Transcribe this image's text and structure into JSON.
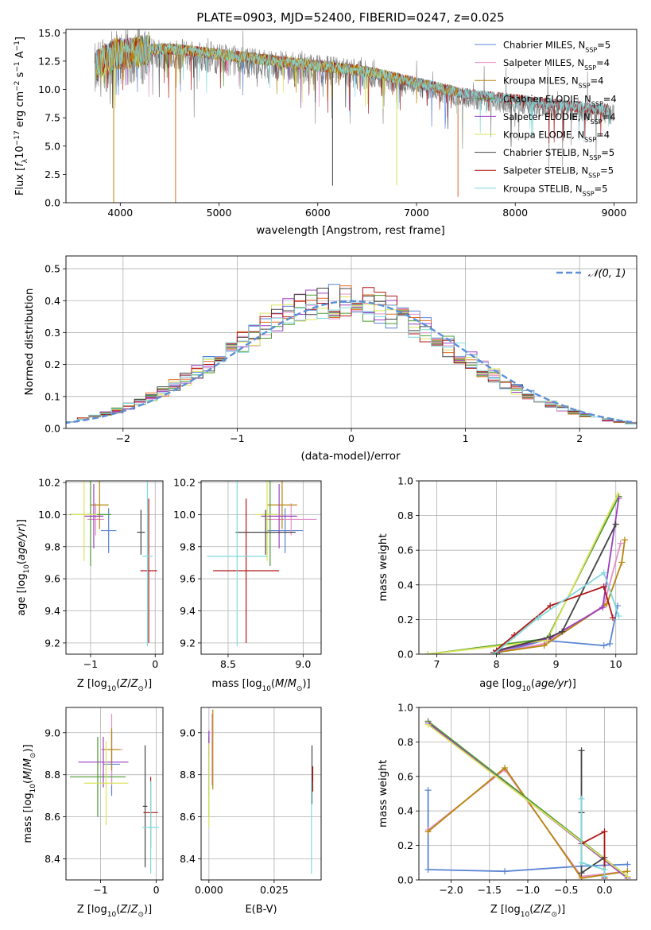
{
  "colors": {
    "chabrier_miles": "#5b84d4",
    "salpeter_miles": "#e48fc9",
    "kroupa_miles": "#b8860b",
    "chabrier_elodie": "#4a9a2e",
    "salpeter_elodie": "#9a3fc4",
    "kroupa_elodie": "#d9e35a",
    "chabrier_stelib": "#444444",
    "salpeter_stelib": "#b01818",
    "kroupa_stelib": "#7fd9dc",
    "hist_orange": "#e06a1f",
    "gauss": "#5b8fd6",
    "spec_gray": "#808080"
  },
  "chart_data": [
    {
      "id": "spectrum",
      "type": "line",
      "title": "PLATE=0903, MJD=52400, FIBERID=0247, z=0.025",
      "xlabel": "wavelength [Angstrom, rest frame]",
      "ylabel": "Flux [fλ10⁻¹⁷ erg cm⁻² s⁻¹ A⁻¹]",
      "xlim": [
        3450,
        9230
      ],
      "ylim": [
        0,
        15.3
      ],
      "xticks": [
        "4000",
        "5000",
        "6000",
        "7000",
        "8000",
        "9000"
      ],
      "yticks": [
        "0.0",
        "2.5",
        "5.0",
        "7.5",
        "10.0",
        "12.5",
        "15.0"
      ],
      "legend": "top-right",
      "legend_entries": [
        {
          "label": "Chabrier MILES, N",
          "sub": "SSP",
          "tail": "=5"
        },
        {
          "label": "Salpeter MILES, N",
          "sub": "SSP",
          "tail": "=4"
        },
        {
          "label": "Kroupa MILES, N",
          "sub": "SSP",
          "tail": "=4"
        },
        {
          "label": "Chabrier ELODIE, N",
          "sub": "SSP",
          "tail": "=4"
        },
        {
          "label": "Salpeter ELODIE, N",
          "sub": "SSP",
          "tail": "=4"
        },
        {
          "label": "Kroupa ELODIE, N",
          "sub": "SSP",
          "tail": "=4"
        },
        {
          "label": "Chabrier STELIB, N",
          "sub": "SSP",
          "tail": "=5"
        },
        {
          "label": "Salpeter STELIB, N",
          "sub": "SSP",
          "tail": "=5"
        },
        {
          "label": "Kroupa STELIB, N",
          "sub": "SSP",
          "tail": "=5"
        }
      ],
      "continuum": {
        "x": [
          3750,
          3850,
          3950,
          4050,
          4200,
          4400,
          4600,
          4800,
          5000,
          5200,
          5400,
          5600,
          5800,
          6000,
          6200,
          6400,
          6600,
          6800,
          7000,
          7200,
          7400,
          7600,
          7800,
          8000,
          8200,
          8400,
          8600,
          8800,
          9000
        ],
        "y": [
          11.5,
          12.3,
          12.8,
          12.7,
          13.0,
          13.2,
          13.1,
          12.9,
          12.7,
          12.5,
          12.3,
          12.1,
          11.9,
          11.7,
          11.5,
          11.3,
          11.0,
          10.6,
          10.2,
          9.8,
          9.4,
          9.1,
          8.9,
          8.7,
          8.5,
          8.3,
          8.1,
          7.9,
          7.8
        ]
      },
      "drops": [
        {
          "x": 3933,
          "y": 0.0
        },
        {
          "x": 4560,
          "y": 0.0
        },
        {
          "x": 6150,
          "y": 1.5
        },
        {
          "x": 6800,
          "y": 1.5
        },
        {
          "x": 7420,
          "y": 0.5
        }
      ]
    },
    {
      "id": "residual-histogram",
      "type": "histogram",
      "xlabel": "(data-model)/error",
      "ylabel": "Normed distribution",
      "xlim": [
        -2.5,
        2.5
      ],
      "ylim": [
        0,
        0.54
      ],
      "xticks": [
        "−2",
        "−1",
        "0",
        "1",
        "2"
      ],
      "yticks": [
        "0.0",
        "0.1",
        "0.2",
        "0.3",
        "0.4",
        "0.5"
      ],
      "legend": "top-right",
      "gauss_label": "𝒩(0, 1)",
      "bin_width": 0.1,
      "x_start": -2.5
    },
    {
      "id": "age-vs-z",
      "type": "errorbar",
      "xlabel": "Z [log₁₀(Z/Z⊙)]",
      "ylabel": "age  [log₁₀(age/yr)]",
      "xlim": [
        -1.38,
        0.12
      ],
      "ylim": [
        9.13,
        10.21
      ],
      "xticks": [
        {
          "v": -1,
          "t": "−1"
        },
        {
          "v": 0,
          "t": "0"
        }
      ],
      "yticks": [
        {
          "v": 9.2,
          "t": "9.2"
        },
        {
          "v": 9.4,
          "t": "9.4"
        },
        {
          "v": 9.6,
          "t": "9.6"
        },
        {
          "v": 9.8,
          "t": "9.8"
        },
        {
          "v": 10.0,
          "t": "10.0"
        },
        {
          "v": 10.2,
          "t": "10.2"
        }
      ],
      "points": [
        {
          "c": "chabrier_miles",
          "x": -0.72,
          "xe": 0.12,
          "y": 9.9,
          "ye": 0.14
        },
        {
          "c": "salpeter_miles",
          "x": -0.92,
          "xe": 0.13,
          "y": 9.97,
          "ye": 0.1
        },
        {
          "c": "kroupa_miles",
          "x": -0.86,
          "xe": 0.14,
          "y": 10.06,
          "ye": 0.15
        },
        {
          "c": "chabrier_elodie",
          "x": -1.0,
          "xe": 0.32,
          "y": 10.0,
          "ye": 0.32
        },
        {
          "c": "salpeter_elodie",
          "x": -0.95,
          "xe": 0.15,
          "y": 9.99,
          "ye": 0.2
        },
        {
          "c": "kroupa_elodie",
          "x": -1.1,
          "xe": 0.2,
          "y": 10.0,
          "ye": 0.29
        },
        {
          "c": "chabrier_stelib",
          "x": -0.22,
          "xe": 0.06,
          "y": 9.89,
          "ye": 0.14
        },
        {
          "c": "salpeter_stelib",
          "x": -0.1,
          "xe": 0.13,
          "y": 9.65,
          "ye": 0.45
        },
        {
          "c": "kroupa_stelib",
          "x": -0.12,
          "xe": 0.08,
          "y": 9.74,
          "ye": 0.56
        }
      ]
    },
    {
      "id": "age-vs-mass",
      "type": "errorbar",
      "xlabel": "mass [log₁₀(M/M⊙)]",
      "ylabel": "",
      "xlim": [
        8.32,
        9.12
      ],
      "ylim": [
        9.13,
        10.21
      ],
      "xticks": [
        {
          "v": 8.5,
          "t": "8.5"
        },
        {
          "v": 9.0,
          "t": "9.0"
        }
      ],
      "yticks": [
        {
          "v": 9.2,
          "t": "9.2"
        },
        {
          "v": 9.4,
          "t": "9.4"
        },
        {
          "v": 9.6,
          "t": "9.6"
        },
        {
          "v": 9.8,
          "t": "9.8"
        },
        {
          "v": 10.0,
          "t": "10.0"
        },
        {
          "v": 10.2,
          "t": "10.2"
        }
      ],
      "points": [
        {
          "c": "chabrier_miles",
          "x": 8.88,
          "xe": 0.12,
          "y": 9.9,
          "ye": 0.14
        },
        {
          "c": "salpeter_miles",
          "x": 8.92,
          "xe": 0.17,
          "y": 9.97,
          "ye": 0.1
        },
        {
          "c": "kroupa_miles",
          "x": 8.86,
          "xe": 0.1,
          "y": 10.06,
          "ye": 0.15
        },
        {
          "c": "chabrier_elodie",
          "x": 8.78,
          "xe": 0.06,
          "y": 10.0,
          "ye": 0.32
        },
        {
          "c": "salpeter_elodie",
          "x": 8.84,
          "xe": 0.12,
          "y": 9.99,
          "ye": 0.2
        },
        {
          "c": "kroupa_elodie",
          "x": 8.76,
          "xe": 0.08,
          "y": 10.0,
          "ye": 0.29
        },
        {
          "c": "chabrier_stelib",
          "x": 8.75,
          "xe": 0.2,
          "y": 9.89,
          "ye": 0.14
        },
        {
          "c": "salpeter_stelib",
          "x": 8.62,
          "xe": 0.22,
          "y": 9.65,
          "ye": 0.45
        },
        {
          "c": "kroupa_stelib",
          "x": 8.56,
          "xe": 0.2,
          "y": 9.74,
          "ye": 0.56
        }
      ]
    },
    {
      "id": "mass-weight-vs-age",
      "type": "line",
      "xlabel": "age  [log₁₀(age/yr)]",
      "ylabel": "mass weight",
      "xlim": [
        6.7,
        10.35
      ],
      "ylim": [
        0,
        1.0
      ],
      "xticks": [
        {
          "v": 7,
          "t": "7"
        },
        {
          "v": 8,
          "t": "8"
        },
        {
          "v": 9,
          "t": "9"
        },
        {
          "v": 10,
          "t": "10"
        }
      ],
      "yticks": [
        {
          "v": 0,
          "t": "0.0"
        },
        {
          "v": 0.2,
          "t": "0.2"
        },
        {
          "v": 0.4,
          "t": "0.4"
        },
        {
          "v": 0.6,
          "t": "0.6"
        },
        {
          "v": 0.8,
          "t": "0.8"
        },
        {
          "v": 1.0,
          "t": "1.0"
        }
      ],
      "series": [
        {
          "c": "chabrier_miles",
          "x": [
            7.95,
            8.8,
            9.8,
            9.9,
            10.03
          ],
          "y": [
            0.0,
            0.08,
            0.05,
            0.06,
            0.28
          ]
        },
        {
          "c": "salpeter_miles",
          "x": [
            8.0,
            8.8,
            9.8,
            10.08
          ],
          "y": [
            0.01,
            0.06,
            0.28,
            0.64
          ]
        },
        {
          "c": "kroupa_miles",
          "x": [
            8.0,
            8.8,
            9.85,
            10.1,
            10.15
          ],
          "y": [
            0.01,
            0.05,
            0.29,
            0.53,
            0.66
          ]
        },
        {
          "c": "chabrier_elodie",
          "x": [
            6.85,
            8.85,
            10.05
          ],
          "y": [
            0.0,
            0.09,
            0.91
          ]
        },
        {
          "c": "salpeter_elodie",
          "x": [
            8.05,
            8.88,
            9.78,
            10.05
          ],
          "y": [
            0.02,
            0.09,
            0.27,
            0.9
          ]
        },
        {
          "c": "kroupa_elodie",
          "x": [
            6.85,
            8.85,
            10.03
          ],
          "y": [
            0.0,
            0.08,
            0.92
          ]
        },
        {
          "c": "chabrier_stelib",
          "x": [
            8.0,
            8.9,
            9.1,
            10.0
          ],
          "y": [
            0.02,
            0.1,
            0.13,
            0.75
          ]
        },
        {
          "c": "salpeter_stelib",
          "x": [
            7.95,
            8.3,
            8.9,
            9.8,
            9.95
          ],
          "y": [
            0.01,
            0.11,
            0.28,
            0.39,
            0.21
          ]
        },
        {
          "c": "kroupa_stelib",
          "x": [
            7.95,
            8.7,
            9.8,
            10.05
          ],
          "y": [
            0.0,
            0.21,
            0.47,
            0.22
          ]
        }
      ]
    },
    {
      "id": "mass-vs-z",
      "type": "errorbar",
      "xlabel": "Z [log₁₀(Z/Z⊙)]",
      "ylabel": "mass [log₁₀(M/M⊙)]",
      "xlim": [
        -1.62,
        0.12
      ],
      "ylim": [
        8.3,
        9.12
      ],
      "xticks": [
        {
          "v": -1,
          "t": "−1"
        },
        {
          "v": 0,
          "t": "0"
        }
      ],
      "yticks": [
        {
          "v": 8.4,
          "t": "8.4"
        },
        {
          "v": 8.6,
          "t": "8.6"
        },
        {
          "v": 8.8,
          "t": "8.8"
        },
        {
          "v": 9.0,
          "t": "9.0"
        }
      ],
      "points": [
        {
          "c": "chabrier_miles",
          "x": -0.8,
          "xe": 0.15,
          "y": 8.85,
          "ye": 0.15
        },
        {
          "c": "salpeter_miles",
          "x": -0.8,
          "xe": 0.2,
          "y": 8.92,
          "ye": 0.17
        },
        {
          "c": "kroupa_miles",
          "x": -0.8,
          "xe": 0.15,
          "y": 8.92,
          "ye": 0.1
        },
        {
          "c": "chabrier_elodie",
          "x": -1.05,
          "xe": 0.5,
          "y": 8.79,
          "ye": 0.19
        },
        {
          "c": "salpeter_elodie",
          "x": -0.95,
          "xe": 0.45,
          "y": 8.86,
          "ye": 0.12
        },
        {
          "c": "kroupa_elodie",
          "x": -0.9,
          "xe": 0.4,
          "y": 8.76,
          "ye": 0.2
        },
        {
          "c": "chabrier_stelib",
          "x": -0.2,
          "xe": 0.04,
          "y": 8.65,
          "ye": 0.29
        },
        {
          "c": "salpeter_stelib",
          "x": -0.1,
          "xe": 0.13,
          "y": 8.62,
          "ye": 0.17
        },
        {
          "c": "kroupa_stelib",
          "x": -0.1,
          "xe": 0.15,
          "y": 8.55,
          "ye": 0.22
        }
      ]
    },
    {
      "id": "mass-vs-ebv",
      "type": "errorbar",
      "xlabel": "E(B-V)",
      "ylabel": "",
      "xlim": [
        -0.003,
        0.043
      ],
      "ylim": [
        8.3,
        9.12
      ],
      "xticks": [
        {
          "v": 0.0,
          "t": "0.000"
        },
        {
          "v": 0.025,
          "t": "0.025"
        }
      ],
      "yticks": [
        {
          "v": 8.4,
          "t": "8.4"
        },
        {
          "v": 8.6,
          "t": "8.6"
        },
        {
          "v": 8.8,
          "t": "8.8"
        },
        {
          "v": 9.0,
          "t": "9.0"
        }
      ],
      "points": [
        {
          "c": "chabrier_miles",
          "x": 0.0,
          "xe": 0,
          "y": 8.85,
          "ye": 0.15
        },
        {
          "c": "salpeter_miles",
          "x": 0.0012,
          "xe": 0,
          "y": 8.92,
          "ye": 0.17
        },
        {
          "c": "kroupa_miles",
          "x": 0.0015,
          "xe": 0,
          "y": 8.92,
          "ye": 0.19
        },
        {
          "c": "chabrier_elodie",
          "x": 0.0,
          "xe": 0,
          "y": 8.79,
          "ye": 0.19
        },
        {
          "c": "salpeter_elodie",
          "x": 0.0,
          "xe": 0,
          "y": 8.95,
          "ye": 0.06
        },
        {
          "c": "kroupa_elodie",
          "x": 0.0,
          "xe": 0,
          "y": 8.75,
          "ye": 0.2
        },
        {
          "c": "chabrier_stelib",
          "x": 0.0395,
          "xe": 0,
          "y": 8.8,
          "ye": 0.14
        },
        {
          "c": "salpeter_stelib",
          "x": 0.0398,
          "xe": 0,
          "y": 8.78,
          "ye": 0.06
        },
        {
          "c": "kroupa_stelib",
          "x": 0.0393,
          "xe": 0,
          "y": 8.55,
          "ye": 0.22
        }
      ]
    },
    {
      "id": "mass-weight-vs-z",
      "type": "line",
      "xlabel": "Z [log₁₀(Z/Z⊙)]",
      "ylabel": "mass weight",
      "xlim": [
        -2.42,
        0.42
      ],
      "ylim": [
        0,
        1.0
      ],
      "xticks": [
        {
          "v": -2.0,
          "t": "−2.0"
        },
        {
          "v": -1.5,
          "t": "−1.5"
        },
        {
          "v": -1.0,
          "t": "−1.0"
        },
        {
          "v": -0.5,
          "t": "−0.5"
        },
        {
          "v": 0.0,
          "t": "0.0"
        }
      ],
      "yticks": [
        {
          "v": 0,
          "t": "0.0"
        },
        {
          "v": 0.2,
          "t": "0.2"
        },
        {
          "v": 0.4,
          "t": "0.4"
        },
        {
          "v": 0.6,
          "t": "0.6"
        },
        {
          "v": 0.8,
          "t": "0.8"
        },
        {
          "v": 1.0,
          "t": "1.0"
        }
      ],
      "series": [
        {
          "c": "chabrier_miles",
          "x": [
            -2.3,
            -2.3,
            -1.3,
            -0.3,
            0.3
          ],
          "y": [
            0.52,
            0.06,
            0.05,
            0.08,
            0.09
          ]
        },
        {
          "c": "salpeter_miles",
          "x": [
            -2.3,
            -1.3,
            -0.3,
            0.3
          ],
          "y": [
            0.29,
            0.64,
            0.02,
            0.05
          ]
        },
        {
          "c": "kroupa_miles",
          "x": [
            -2.3,
            -1.3,
            -0.3,
            0.3
          ],
          "y": [
            0.28,
            0.65,
            0.01,
            0.05
          ]
        },
        {
          "c": "chabrier_elodie",
          "x": [
            -2.3,
            0.3
          ],
          "y": [
            0.92,
            0.02
          ]
        },
        {
          "c": "salpeter_elodie",
          "x": [
            -2.3,
            0.3
          ],
          "y": [
            0.91,
            0.01
          ]
        },
        {
          "c": "kroupa_elodie",
          "x": [
            -2.3,
            0.3
          ],
          "y": [
            0.9,
            0.02
          ]
        },
        {
          "c": "chabrier_stelib",
          "x": [
            -0.3,
            -0.3,
            -0.3,
            0.0,
            0.0
          ],
          "y": [
            0.75,
            0.39,
            0.04,
            0.13,
            0.02
          ]
        },
        {
          "c": "salpeter_stelib",
          "x": [
            -0.3,
            0.0,
            0.0
          ],
          "y": [
            0.21,
            0.28,
            0.01
          ]
        },
        {
          "c": "kroupa_stelib",
          "x": [
            -0.3,
            -0.3,
            0.0,
            0.0
          ],
          "y": [
            0.47,
            0.1,
            0.06,
            0.02
          ]
        }
      ]
    }
  ]
}
